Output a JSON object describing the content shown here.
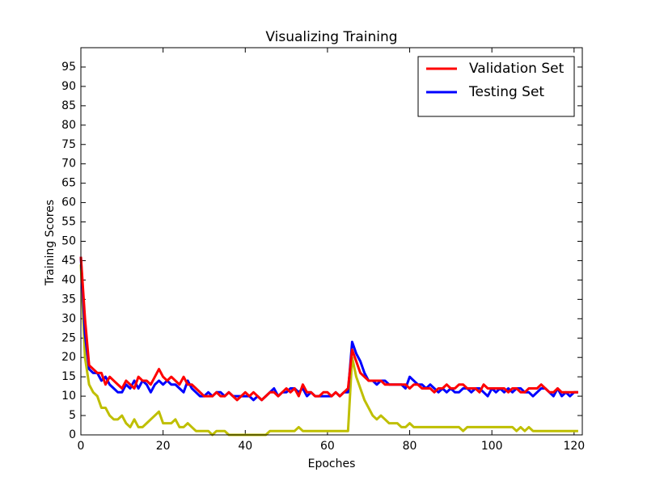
{
  "chart_data": {
    "type": "line",
    "title": "Visualizing Training",
    "x_label": "Epoches",
    "y_label": "Training Scores",
    "x": [
      0,
      1,
      2,
      3,
      4,
      5,
      6,
      7,
      8,
      9,
      10,
      11,
      12,
      13,
      14,
      15,
      16,
      17,
      18,
      19,
      20,
      21,
      22,
      23,
      24,
      25,
      26,
      27,
      28,
      29,
      30,
      31,
      32,
      33,
      34,
      35,
      36,
      37,
      38,
      39,
      40,
      41,
      42,
      43,
      44,
      45,
      46,
      47,
      48,
      49,
      50,
      51,
      52,
      53,
      54,
      55,
      56,
      57,
      58,
      59,
      60,
      61,
      62,
      63,
      64,
      65,
      66,
      67,
      68,
      69,
      70,
      71,
      72,
      73,
      74,
      75,
      76,
      77,
      78,
      79,
      80,
      81,
      82,
      83,
      84,
      85,
      86,
      87,
      88,
      89,
      90,
      91,
      92,
      93,
      94,
      95,
      96,
      97,
      98,
      99,
      100,
      101,
      102,
      103,
      104,
      105,
      106,
      107,
      108,
      109,
      110,
      111,
      112,
      113,
      114,
      115,
      116,
      117,
      118,
      119,
      120,
      121
    ],
    "series": [
      {
        "name": "Validation Set",
        "color": "#ff0000",
        "values": [
          46,
          30,
          18,
          17,
          16,
          16,
          13,
          15,
          14,
          13,
          12,
          14,
          13,
          12,
          15,
          14,
          14,
          13,
          15,
          17,
          15,
          14,
          15,
          14,
          13,
          15,
          13,
          13,
          12,
          11,
          10,
          10,
          10,
          11,
          10,
          10,
          11,
          10,
          9,
          10,
          11,
          10,
          11,
          10,
          9,
          10,
          11,
          11,
          10,
          11,
          12,
          11,
          12,
          10,
          13,
          11,
          11,
          10,
          10,
          11,
          11,
          10,
          11,
          10,
          11,
          12,
          22,
          19,
          16,
          15,
          14,
          14,
          14,
          14,
          13,
          13,
          13,
          13,
          13,
          13,
          12,
          13,
          13,
          12,
          12,
          12,
          11,
          12,
          12,
          13,
          12,
          12,
          13,
          13,
          12,
          12,
          12,
          11,
          13,
          12,
          12,
          12,
          12,
          12,
          11,
          12,
          12,
          11,
          11,
          12,
          12,
          12,
          13,
          12,
          11,
          11,
          12,
          11,
          11,
          11,
          11,
          11
        ]
      },
      {
        "name": "Testing Set",
        "color": "#0000ff",
        "values": [
          46,
          26,
          17,
          16,
          16,
          14,
          15,
          13,
          12,
          11,
          11,
          13,
          12,
          14,
          12,
          14,
          13,
          11,
          13,
          14,
          13,
          14,
          13,
          13,
          12,
          11,
          14,
          12,
          11,
          10,
          10,
          11,
          10,
          11,
          11,
          10,
          11,
          10,
          10,
          10,
          10,
          10,
          9,
          10,
          9,
          10,
          11,
          12,
          10,
          11,
          11,
          12,
          12,
          11,
          12,
          10,
          11,
          10,
          10,
          10,
          10,
          10,
          11,
          10,
          11,
          11,
          24,
          21,
          19,
          16,
          14,
          14,
          13,
          14,
          14,
          13,
          13,
          13,
          13,
          12,
          15,
          14,
          13,
          13,
          12,
          13,
          12,
          11,
          12,
          11,
          12,
          11,
          11,
          12,
          12,
          11,
          12,
          12,
          11,
          10,
          12,
          11,
          12,
          11,
          12,
          11,
          12,
          12,
          11,
          11,
          10,
          11,
          12,
          12,
          11,
          10,
          12,
          10,
          11,
          10,
          11,
          11
        ]
      },
      {
        "color": "#bfbf00",
        "values": [
          44,
          20,
          13,
          11,
          10,
          7,
          7,
          5,
          4,
          4,
          5,
          3,
          2,
          4,
          2,
          2,
          3,
          4,
          5,
          6,
          3,
          3,
          3,
          4,
          2,
          2,
          3,
          2,
          1,
          1,
          1,
          1,
          0,
          1,
          1,
          1,
          0,
          0,
          0,
          0,
          0,
          0,
          0,
          0,
          0,
          0,
          1,
          1,
          1,
          1,
          1,
          1,
          1,
          2,
          1,
          1,
          1,
          1,
          1,
          1,
          1,
          1,
          1,
          1,
          1,
          1,
          20,
          15,
          12,
          9,
          7,
          5,
          4,
          5,
          4,
          3,
          3,
          3,
          2,
          2,
          3,
          2,
          2,
          2,
          2,
          2,
          2,
          2,
          2,
          2,
          2,
          2,
          2,
          1,
          2,
          2,
          2,
          2,
          2,
          2,
          2,
          2,
          2,
          2,
          2,
          2,
          1,
          2,
          1,
          2,
          1,
          1,
          1,
          1,
          1,
          1,
          1,
          1,
          1,
          1,
          1,
          1
        ]
      }
    ],
    "xlim": [
      0,
      122
    ],
    "ylim": [
      0,
      100
    ],
    "xticks": [
      0,
      20,
      40,
      60,
      80,
      100,
      120
    ],
    "yticks": [
      0,
      5,
      10,
      15,
      20,
      25,
      30,
      35,
      40,
      45,
      50,
      55,
      60,
      65,
      70,
      75,
      80,
      85,
      90,
      95
    ],
    "legend": "upper right"
  }
}
